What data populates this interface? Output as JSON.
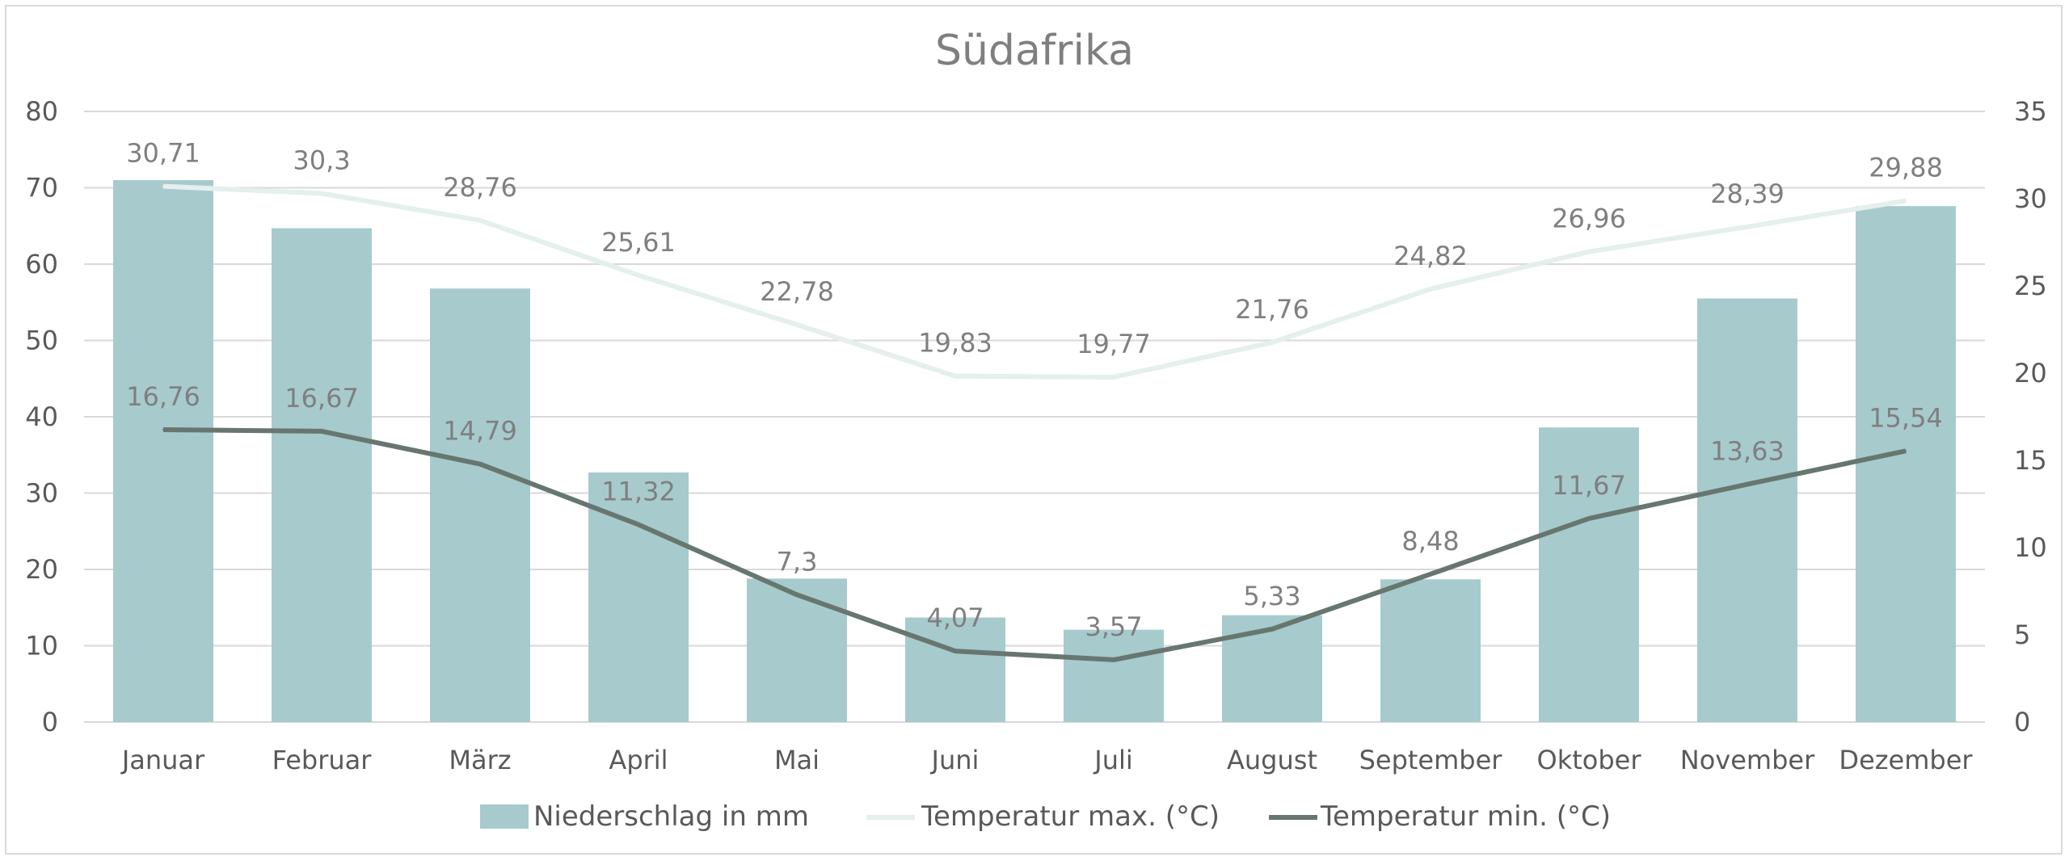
{
  "chart_data": {
    "type": "bar",
    "title": "Südafrika",
    "categories": [
      "Januar",
      "Februar",
      "März",
      "April",
      "Mai",
      "Juni",
      "Juli",
      "August",
      "September",
      "Oktober",
      "November",
      "Dezember"
    ],
    "y_left": {
      "ylim": [
        0,
        80
      ],
      "ticks": [
        "0",
        "10",
        "20",
        "30",
        "40",
        "50",
        "60",
        "70",
        "80"
      ]
    },
    "y_right": {
      "ylim": [
        0,
        35
      ],
      "ticks": [
        "0",
        "5",
        "10",
        "15",
        "20",
        "25",
        "30",
        "35"
      ]
    },
    "grid": true,
    "legend_position": "bottom",
    "series": [
      {
        "name": "Niederschlag in mm",
        "type": "bar",
        "axis": "left",
        "color": "#a7cacd",
        "values": [
          71,
          64.7,
          56.8,
          32.7,
          18.8,
          13.7,
          12.1,
          14,
          18.7,
          38.6,
          55.5,
          67.6
        ]
      },
      {
        "name": "Temperatur max. (°C)",
        "type": "line",
        "axis": "right",
        "color": "#e4efee",
        "values": [
          30.71,
          30.3,
          28.76,
          25.61,
          22.78,
          19.83,
          19.77,
          21.76,
          24.82,
          26.96,
          28.39,
          29.88
        ],
        "labels": [
          "30,71",
          "30,3",
          "28,76",
          "25,61",
          "22,78",
          "19,83",
          "19,77",
          "21,76",
          "24,82",
          "26,96",
          "28,39",
          "29,88"
        ]
      },
      {
        "name": "Temperatur min. (°C)",
        "type": "line",
        "axis": "right",
        "color": "#67776f",
        "values": [
          16.76,
          16.67,
          14.79,
          11.32,
          7.3,
          4.07,
          3.57,
          5.33,
          8.48,
          11.67,
          13.63,
          15.54
        ],
        "labels": [
          "16,76",
          "16,67",
          "14,79",
          "11,32",
          "7,3",
          "4,07",
          "3,57",
          "5,33",
          "8,48",
          "11,67",
          "13,63",
          "15,54"
        ]
      }
    ],
    "colors": {
      "grid": "#d9d9d9",
      "text": "#595959",
      "title": "#7f7f7f"
    }
  }
}
